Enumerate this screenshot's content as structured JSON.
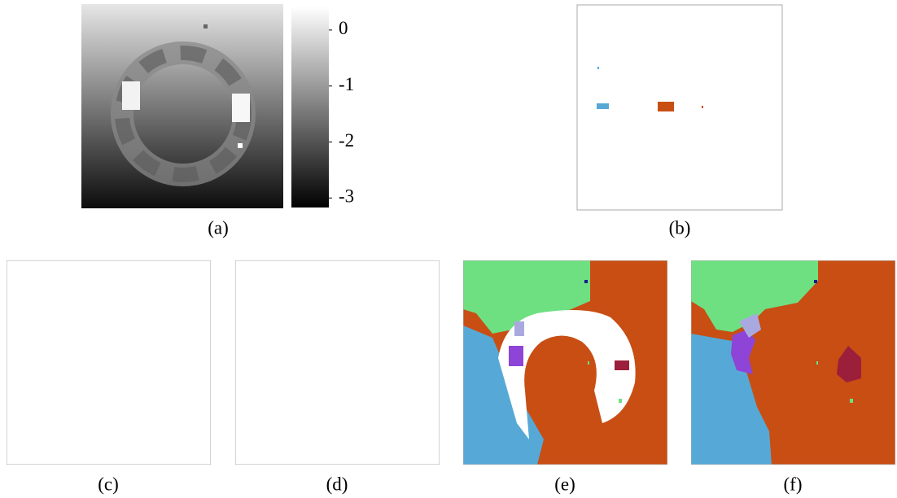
{
  "colorbar": {
    "lim": [
      -3.17,
      0.42
    ],
    "ticks": [
      0,
      -1,
      -2,
      -3
    ]
  },
  "panels": [
    {
      "label": "(a)"
    },
    {
      "label": "(b)"
    },
    {
      "label": "(c)"
    },
    {
      "label": "(d)"
    },
    {
      "label": "(e)"
    },
    {
      "label": "(f)"
    }
  ]
}
